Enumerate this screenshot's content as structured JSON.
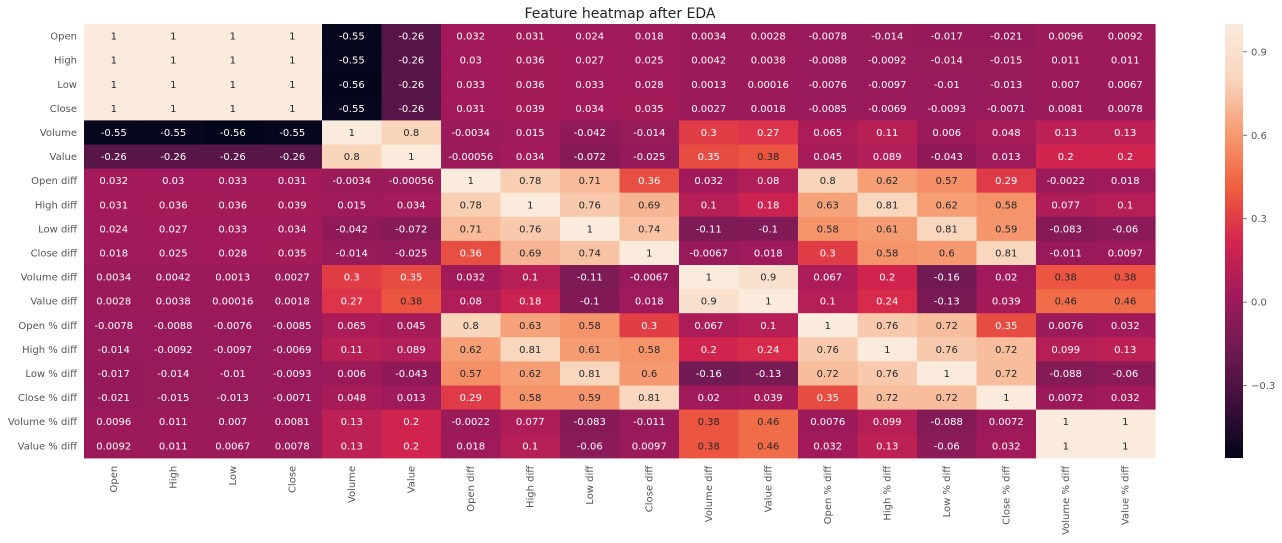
{
  "chart_data": {
    "type": "heatmap",
    "title": "Feature heatmap after EDA",
    "xlabel": "",
    "ylabel": "",
    "labels": [
      "Open",
      "High",
      "Low",
      "Close",
      "Volume",
      "Value",
      "Open diff",
      "High diff",
      "Low diff",
      "Close diff",
      "Volume diff",
      "Value diff",
      "Open % diff",
      "High % diff",
      "Low % diff",
      "Close % diff",
      "Volume % diff",
      "Value % diff"
    ],
    "values": [
      [
        1,
        1,
        1,
        1,
        -0.55,
        -0.26,
        0.032,
        0.031,
        0.024,
        0.018,
        0.0034,
        0.0028,
        -0.0078,
        -0.014,
        -0.017,
        -0.021,
        0.0096,
        0.0092
      ],
      [
        1,
        1,
        1,
        1,
        -0.55,
        -0.26,
        0.03,
        0.036,
        0.027,
        0.025,
        0.0042,
        0.0038,
        -0.0088,
        -0.0092,
        -0.014,
        -0.015,
        0.011,
        0.011
      ],
      [
        1,
        1,
        1,
        1,
        -0.56,
        -0.26,
        0.033,
        0.036,
        0.033,
        0.028,
        0.0013,
        0.00016,
        -0.0076,
        -0.0097,
        -0.01,
        -0.013,
        0.007,
        0.0067
      ],
      [
        1,
        1,
        1,
        1,
        -0.55,
        -0.26,
        0.031,
        0.039,
        0.034,
        0.035,
        0.0027,
        0.0018,
        -0.0085,
        -0.0069,
        -0.0093,
        -0.0071,
        0.0081,
        0.0078
      ],
      [
        -0.55,
        -0.55,
        -0.56,
        -0.55,
        1,
        0.8,
        -0.0034,
        0.015,
        -0.042,
        -0.014,
        0.3,
        0.27,
        0.065,
        0.11,
        0.006,
        0.048,
        0.13,
        0.13
      ],
      [
        -0.26,
        -0.26,
        -0.26,
        -0.26,
        0.8,
        1,
        -0.00056,
        0.034,
        -0.072,
        -0.025,
        0.35,
        0.38,
        0.045,
        0.089,
        -0.043,
        0.013,
        0.2,
        0.2
      ],
      [
        0.032,
        0.03,
        0.033,
        0.031,
        -0.0034,
        -0.00056,
        1,
        0.78,
        0.71,
        0.36,
        0.032,
        0.08,
        0.8,
        0.62,
        0.57,
        0.29,
        -0.0022,
        0.018
      ],
      [
        0.031,
        0.036,
        0.036,
        0.039,
        0.015,
        0.034,
        0.78,
        1,
        0.76,
        0.69,
        0.1,
        0.18,
        0.63,
        0.81,
        0.62,
        0.58,
        0.077,
        0.1
      ],
      [
        0.024,
        0.027,
        0.033,
        0.034,
        -0.042,
        -0.072,
        0.71,
        0.76,
        1,
        0.74,
        -0.11,
        -0.1,
        0.58,
        0.61,
        0.81,
        0.59,
        -0.083,
        -0.06
      ],
      [
        0.018,
        0.025,
        0.028,
        0.035,
        -0.014,
        -0.025,
        0.36,
        0.69,
        0.74,
        1,
        -0.0067,
        0.018,
        0.3,
        0.58,
        0.6,
        0.81,
        -0.011,
        0.0097
      ],
      [
        0.0034,
        0.0042,
        0.0013,
        0.0027,
        0.3,
        0.35,
        0.032,
        0.1,
        -0.11,
        -0.0067,
        1,
        0.9,
        0.067,
        0.2,
        -0.16,
        0.02,
        0.38,
        0.38
      ],
      [
        0.0028,
        0.0038,
        0.00016,
        0.0018,
        0.27,
        0.38,
        0.08,
        0.18,
        -0.1,
        0.018,
        0.9,
        1,
        0.1,
        0.24,
        -0.13,
        0.039,
        0.46,
        0.46
      ],
      [
        -0.0078,
        -0.0088,
        -0.0076,
        -0.0085,
        0.065,
        0.045,
        0.8,
        0.63,
        0.58,
        0.3,
        0.067,
        0.1,
        1,
        0.76,
        0.72,
        0.35,
        0.0076,
        0.032
      ],
      [
        -0.014,
        -0.0092,
        -0.0097,
        -0.0069,
        0.11,
        0.089,
        0.62,
        0.81,
        0.61,
        0.58,
        0.2,
        0.24,
        0.76,
        1,
        0.76,
        0.72,
        0.099,
        0.13
      ],
      [
        -0.017,
        -0.014,
        -0.01,
        -0.0093,
        0.006,
        -0.043,
        0.57,
        0.62,
        0.81,
        0.6,
        -0.16,
        -0.13,
        0.72,
        0.76,
        1,
        0.72,
        -0.088,
        -0.06
      ],
      [
        -0.021,
        -0.015,
        -0.013,
        -0.0071,
        0.048,
        0.013,
        0.29,
        0.58,
        0.59,
        0.81,
        0.02,
        0.039,
        0.35,
        0.72,
        0.72,
        1,
        0.0072,
        0.032
      ],
      [
        0.0096,
        0.011,
        0.007,
        0.0081,
        0.13,
        0.2,
        -0.0022,
        0.077,
        -0.083,
        -0.011,
        0.38,
        0.46,
        0.0076,
        0.099,
        -0.088,
        0.0072,
        1,
        1
      ],
      [
        0.0092,
        0.011,
        0.0067,
        0.0078,
        0.13,
        0.2,
        0.018,
        0.1,
        -0.06,
        0.0097,
        0.38,
        0.46,
        0.032,
        0.13,
        -0.06,
        0.032,
        1,
        1
      ]
    ],
    "colorbar": {
      "range": [
        -0.56,
        1
      ],
      "ticks": [
        0.9,
        0.6,
        0.3,
        0.0,
        -0.3
      ],
      "tick_labels": [
        "0.9",
        "0.6",
        "0.3",
        "0.0",
        "−0.3"
      ],
      "colormap": "rocket",
      "colormap_stops": [
        "#03051a",
        "#3c0f3c",
        "#6f1a53",
        "#a11a5b",
        "#d5254e",
        "#f05f3e",
        "#f69c73",
        "#f9d6be",
        "#faebdd"
      ]
    },
    "grid": false,
    "legend": "colorbar-right"
  }
}
